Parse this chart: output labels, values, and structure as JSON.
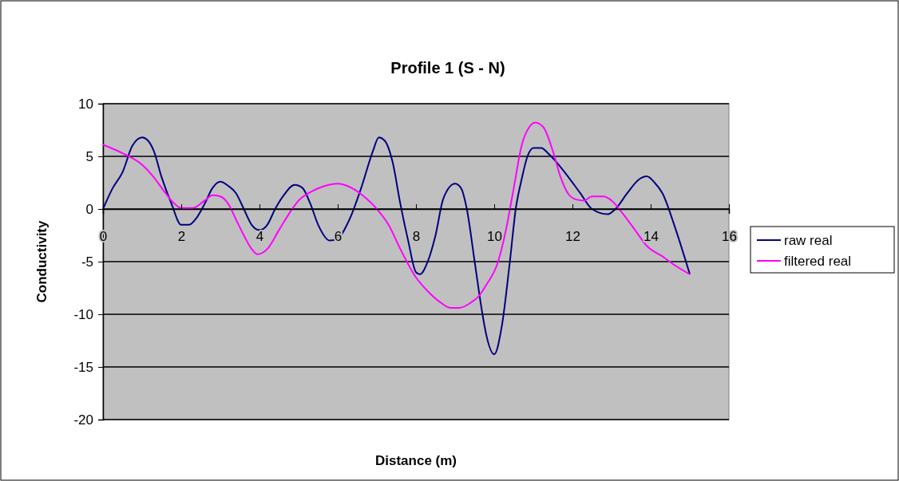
{
  "chart_data": {
    "type": "line",
    "title": "Profile 1 (S - N)",
    "xlabel": "Distance (m)",
    "ylabel": "Conductivity",
    "xlim": [
      0,
      16
    ],
    "xticks": [
      0,
      2,
      4,
      6,
      8,
      10,
      12,
      14,
      16
    ],
    "ylim": [
      -20,
      10
    ],
    "yticks": [
      -20,
      -15,
      -10,
      -5,
      0,
      5,
      10
    ],
    "grid": "y",
    "legend": "right",
    "marker": "none",
    "line_style": "solid",
    "series": [
      {
        "name": "raw real",
        "color": "#000080",
        "x": [
          0,
          0.25,
          0.5,
          0.75,
          1,
          1.15,
          1.3,
          1.5,
          1.75,
          2,
          2.2,
          2.4,
          2.6,
          2.8,
          3,
          3.2,
          3.4,
          3.6,
          3.8,
          4,
          4.2,
          4.4,
          4.6,
          4.9,
          5.1,
          5.3,
          5.5,
          5.8,
          6,
          6.3,
          6.6,
          6.9,
          7.05,
          7.2,
          7.4,
          7.6,
          7.8,
          8,
          8.1,
          8.3,
          8.5,
          8.7,
          9,
          9.15,
          9.3,
          9.5,
          9.7,
          9.8,
          10,
          10.2,
          10.4,
          10.55,
          10.7,
          10.85,
          11,
          11.2,
          11.4,
          11.8,
          12.2,
          12.5,
          12.9,
          13.1,
          13.4,
          13.7,
          13.9,
          14.1,
          14.3,
          14.6,
          15
        ],
        "values": [
          0,
          2,
          3.5,
          6,
          6.8,
          6.5,
          5.5,
          3,
          0.5,
          -1.5,
          -1.5,
          -0.8,
          0.5,
          2,
          2.6,
          2.2,
          1.5,
          0,
          -1.5,
          -2,
          -1.5,
          0,
          1.2,
          2.3,
          2,
          0.5,
          -1.5,
          -3,
          -2.8,
          -1,
          2,
          5.5,
          6.8,
          6.5,
          4.5,
          0.5,
          -3,
          -6,
          -6.2,
          -5,
          -2.5,
          1,
          2.4,
          2,
          0,
          -5,
          -10,
          -12,
          -13.8,
          -11,
          -5,
          0,
          2.8,
          5,
          5.8,
          5.8,
          5.2,
          3.5,
          1.5,
          0,
          -0.5,
          0,
          1.5,
          2.8,
          3.1,
          2.5,
          1.5,
          -1.5,
          -6.2
        ]
      },
      {
        "name": "filtered real",
        "color": "#ff00ff",
        "x": [
          0,
          0.5,
          1,
          1.3,
          1.6,
          1.8,
          2,
          2.3,
          2.6,
          2.8,
          3,
          3.2,
          3.4,
          3.6,
          3.8,
          3.95,
          4.2,
          4.5,
          4.8,
          5,
          5.3,
          5.6,
          6,
          6.3,
          6.6,
          7,
          7.3,
          7.6,
          8,
          8.3,
          8.6,
          8.9,
          9.1,
          9.4,
          9.6,
          9.8,
          10.1,
          10.3,
          10.5,
          10.7,
          10.9,
          11.05,
          11.25,
          11.5,
          11.7,
          11.9,
          12.1,
          12.3,
          12.5,
          12.8,
          13,
          13.3,
          13.6,
          13.9,
          14.3,
          14.6,
          15
        ],
        "values": [
          6.1,
          5.3,
          4.2,
          3,
          1.5,
          0.6,
          0.1,
          0.1,
          0.8,
          1.3,
          1.2,
          0.5,
          -1,
          -2.5,
          -3.8,
          -4.3,
          -3.8,
          -2,
          -0.2,
          0.8,
          1.6,
          2.1,
          2.4,
          2.1,
          1.4,
          0,
          -1.5,
          -3.8,
          -6.5,
          -7.8,
          -8.8,
          -9.4,
          -9.4,
          -8.9,
          -8.3,
          -7.2,
          -5,
          -2,
          2,
          6,
          7.8,
          8.2,
          7.8,
          5.5,
          3,
          1.4,
          0.9,
          0.8,
          1.2,
          1.2,
          0.8,
          -0.5,
          -2,
          -3.5,
          -4.5,
          -5.3,
          -6.2
        ]
      }
    ]
  }
}
